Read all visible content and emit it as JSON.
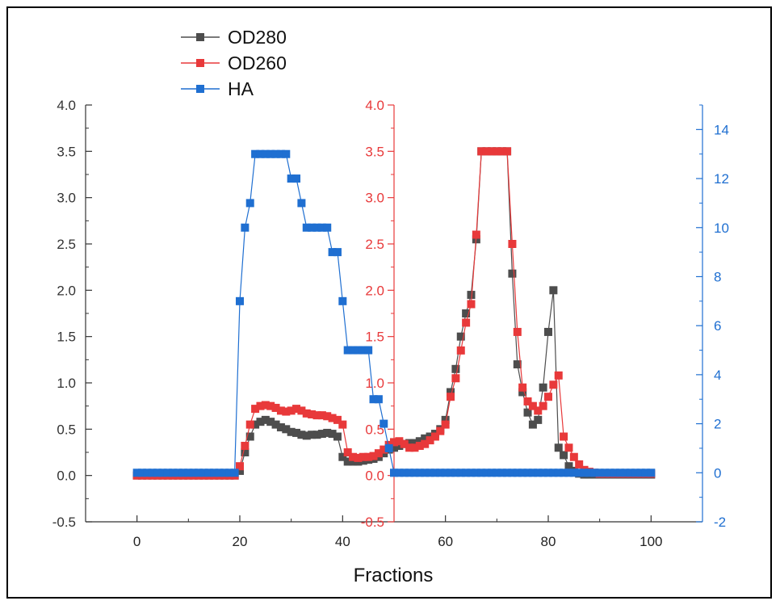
{
  "chart_data": {
    "type": "line",
    "xlabel": "Fractions",
    "xlim": [
      -10,
      110
    ],
    "xticks": [
      0,
      20,
      40,
      60,
      80,
      100
    ],
    "left_axis": {
      "ylim": [
        -0.5,
        4.0
      ],
      "ticks": [
        "-0.5",
        "0.0",
        "0.5",
        "1.0",
        "1.5",
        "2.0",
        "2.5",
        "3.0",
        "3.5",
        "4.0"
      ],
      "color": "#333333"
    },
    "middle_axis": {
      "ylim": [
        -0.5,
        4.0
      ],
      "ticks": [
        "-0.5",
        "0.0",
        "0.5",
        "1.0",
        "1.5",
        "2.0",
        "2.5",
        "3.0",
        "3.5",
        "4.0"
      ],
      "color": "#e8393a",
      "position_x": 50
    },
    "right_axis": {
      "ylim": [
        -2,
        15
      ],
      "ticks": [
        "-2",
        "0",
        "2",
        "4",
        "6",
        "8",
        "10",
        "12",
        "14"
      ],
      "color": "#1f6fd1"
    },
    "legend": {
      "placement": "top-left"
    },
    "series": [
      {
        "name": "OD280",
        "color": "#4d4d4d",
        "axis": "left",
        "x": [
          0,
          1,
          2,
          3,
          4,
          5,
          6,
          7,
          8,
          9,
          10,
          11,
          12,
          13,
          14,
          15,
          16,
          17,
          18,
          19,
          20,
          21,
          22,
          23,
          24,
          25,
          26,
          27,
          28,
          29,
          30,
          31,
          32,
          33,
          34,
          35,
          36,
          37,
          38,
          39,
          40,
          41,
          42,
          43,
          44,
          45,
          46,
          47,
          48,
          49,
          50,
          51,
          52,
          53,
          54,
          55,
          56,
          57,
          58,
          59,
          60,
          61,
          62,
          63,
          64,
          65,
          66,
          67,
          68,
          69,
          70,
          71,
          72,
          73,
          74,
          75,
          76,
          77,
          78,
          79,
          80,
          81,
          82,
          83,
          84,
          85,
          86,
          87,
          88,
          89,
          90,
          91,
          92,
          93,
          94,
          95,
          96,
          97,
          98,
          99,
          100
        ],
        "y": [
          0,
          0,
          0,
          0,
          0,
          0,
          0,
          0,
          0,
          0,
          0,
          0,
          0,
          0,
          0,
          0,
          0,
          0,
          0,
          0,
          0.05,
          0.25,
          0.42,
          0.55,
          0.58,
          0.6,
          0.58,
          0.55,
          0.52,
          0.5,
          0.47,
          0.46,
          0.44,
          0.43,
          0.44,
          0.44,
          0.45,
          0.46,
          0.45,
          0.42,
          0.2,
          0.15,
          0.15,
          0.15,
          0.16,
          0.17,
          0.18,
          0.2,
          0.24,
          0.28,
          0.3,
          0.32,
          0.34,
          0.35,
          0.35,
          0.37,
          0.4,
          0.42,
          0.45,
          0.5,
          0.6,
          0.9,
          1.15,
          1.5,
          1.75,
          1.95,
          2.55,
          3.5,
          3.5,
          3.5,
          3.5,
          3.5,
          3.5,
          2.18,
          1.2,
          0.9,
          0.68,
          0.55,
          0.6,
          0.95,
          1.55,
          2.0,
          0.3,
          0.22,
          0.1,
          0.05,
          0.02,
          0.01,
          0.01,
          0.01,
          0.01,
          0.01,
          0.01,
          0.01,
          0.01,
          0.01,
          0.01,
          0.01,
          0.01,
          0.01,
          0.01
        ]
      },
      {
        "name": "OD260",
        "color": "#e8393a",
        "axis": "middle",
        "x": [
          0,
          1,
          2,
          3,
          4,
          5,
          6,
          7,
          8,
          9,
          10,
          11,
          12,
          13,
          14,
          15,
          16,
          17,
          18,
          19,
          20,
          21,
          22,
          23,
          24,
          25,
          26,
          27,
          28,
          29,
          30,
          31,
          32,
          33,
          34,
          35,
          36,
          37,
          38,
          39,
          40,
          41,
          42,
          43,
          44,
          45,
          46,
          47,
          48,
          49,
          50,
          51,
          52,
          53,
          54,
          55,
          56,
          57,
          58,
          59,
          60,
          61,
          62,
          63,
          64,
          65,
          66,
          67,
          68,
          69,
          70,
          71,
          72,
          73,
          74,
          75,
          76,
          77,
          78,
          79,
          80,
          81,
          82,
          83,
          84,
          85,
          86,
          87,
          88,
          89,
          90,
          91,
          92,
          93,
          94,
          95,
          96,
          97,
          98,
          99,
          100
        ],
        "y": [
          0,
          0,
          0,
          0,
          0,
          0,
          0,
          0,
          0,
          0,
          0,
          0,
          0,
          0,
          0,
          0,
          0,
          0,
          0,
          0,
          0.1,
          0.32,
          0.55,
          0.72,
          0.75,
          0.76,
          0.75,
          0.73,
          0.7,
          0.69,
          0.7,
          0.72,
          0.7,
          0.67,
          0.66,
          0.65,
          0.65,
          0.64,
          0.62,
          0.6,
          0.55,
          0.25,
          0.2,
          0.19,
          0.2,
          0.2,
          0.21,
          0.24,
          0.28,
          0.33,
          0.36,
          0.37,
          0.34,
          0.3,
          0.3,
          0.32,
          0.34,
          0.38,
          0.42,
          0.48,
          0.55,
          0.85,
          1.05,
          1.35,
          1.65,
          1.85,
          2.6,
          3.5,
          3.5,
          3.5,
          3.5,
          3.5,
          3.5,
          2.5,
          1.55,
          0.95,
          0.8,
          0.75,
          0.7,
          0.75,
          0.85,
          0.98,
          1.08,
          0.42,
          0.3,
          0.2,
          0.12,
          0.06,
          0.04,
          0.03,
          0.02,
          0.02,
          0.02,
          0.02,
          0.02,
          0.02,
          0.02,
          0.02,
          0.02,
          0.02,
          0.02
        ]
      },
      {
        "name": "HA",
        "color": "#1f6fd1",
        "axis": "right",
        "x": [
          0,
          1,
          2,
          3,
          4,
          5,
          6,
          7,
          8,
          9,
          10,
          11,
          12,
          13,
          14,
          15,
          16,
          17,
          18,
          19,
          20,
          21,
          22,
          23,
          24,
          25,
          26,
          27,
          28,
          29,
          30,
          31,
          32,
          33,
          34,
          35,
          36,
          37,
          38,
          39,
          40,
          41,
          42,
          43,
          44,
          45,
          46,
          47,
          48,
          49,
          50,
          51,
          52,
          53,
          54,
          55,
          56,
          57,
          58,
          59,
          60,
          61,
          62,
          63,
          64,
          65,
          66,
          67,
          68,
          69,
          70,
          71,
          72,
          73,
          74,
          75,
          76,
          77,
          78,
          79,
          80,
          81,
          82,
          83,
          84,
          85,
          86,
          87,
          88,
          89,
          90,
          91,
          92,
          93,
          94,
          95,
          96,
          97,
          98,
          99,
          100
        ],
        "y": [
          0,
          0,
          0,
          0,
          0,
          0,
          0,
          0,
          0,
          0,
          0,
          0,
          0,
          0,
          0,
          0,
          0,
          0,
          0,
          0,
          7,
          10,
          11,
          13,
          13,
          13,
          13,
          13,
          13,
          13,
          12,
          12,
          11,
          10,
          10,
          10,
          10,
          10,
          9,
          9,
          7,
          5,
          5,
          5,
          5,
          5,
          3,
          3,
          2,
          1,
          0,
          0,
          0,
          0,
          0,
          0,
          0,
          0,
          0,
          0,
          0,
          0,
          0,
          0,
          0,
          0,
          0,
          0,
          0,
          0,
          0,
          0,
          0,
          0,
          0,
          0,
          0,
          0,
          0,
          0,
          0,
          0,
          0,
          0,
          0,
          0,
          0,
          0,
          0,
          0,
          0,
          0,
          0,
          0,
          0,
          0,
          0,
          0,
          0,
          0,
          0
        ]
      }
    ]
  }
}
